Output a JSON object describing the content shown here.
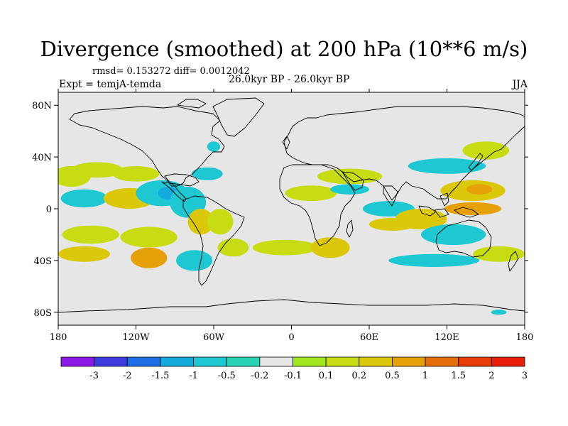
{
  "chart_data": {
    "type": "heatmap",
    "title": "Divergence (smoothed) at 200 hPa (10**6 m/s)",
    "stats_line": "rmsd= 0.153272 diff= 0.0012042",
    "expt_line": "Expt = temjA-temda",
    "period_line": "26.0kyr BP - 26.0kyr BP",
    "season": "JJA",
    "xlim": [
      -180,
      180
    ],
    "ylim": [
      -90,
      90
    ],
    "x_ticks": [
      {
        "value": -180,
        "label": "180"
      },
      {
        "value": -120,
        "label": "120W"
      },
      {
        "value": -60,
        "label": "60W"
      },
      {
        "value": 0,
        "label": "0"
      },
      {
        "value": 60,
        "label": "60E"
      },
      {
        "value": 120,
        "label": "120E"
      },
      {
        "value": 180,
        "label": "180"
      }
    ],
    "y_ticks": [
      {
        "value": 80,
        "label": "80N"
      },
      {
        "value": 40,
        "label": "40N"
      },
      {
        "value": 0,
        "label": "0"
      },
      {
        "value": -40,
        "label": "40S"
      },
      {
        "value": -80,
        "label": "80S"
      }
    ],
    "colorbar": {
      "colors": [
        "#8c1ae6",
        "#3c3cdc",
        "#1e6ee6",
        "#14aadc",
        "#1ec8d2",
        "#28d2b4",
        "#e6e6e6",
        "#a0e61e",
        "#c8dc14",
        "#dcc80a",
        "#e6a00a",
        "#e66e0a",
        "#e63c0a",
        "#e61e0a"
      ],
      "labels": [
        "-3",
        "-2",
        "-1.5",
        "-1",
        "-0.5",
        "-0.2",
        "-0.1",
        "0.1",
        "0.2",
        "0.5",
        "1",
        "1.5",
        "2",
        "3"
      ],
      "levels": [
        -3,
        -2,
        -1.5,
        -1,
        -0.5,
        -0.2,
        -0.1,
        0.1,
        0.2,
        0.5,
        1,
        1.5,
        2,
        3
      ]
    },
    "field_background": "#e6e6e6",
    "anomaly_regions": [
      {
        "lon": -170,
        "lat": 25,
        "rlon": 15,
        "rlat": 8,
        "value": 0.2
      },
      {
        "lon": -150,
        "lat": 30,
        "rlon": 20,
        "rlat": 6,
        "value": 0.2
      },
      {
        "lon": -120,
        "lat": 27,
        "rlon": 18,
        "rlat": 6,
        "value": 0.2
      },
      {
        "lon": -160,
        "lat": 8,
        "rlon": 18,
        "rlat": 7,
        "value": -0.5
      },
      {
        "lon": -125,
        "lat": 8,
        "rlon": 20,
        "rlat": 8,
        "value": 0.5
      },
      {
        "lon": -100,
        "lat": 12,
        "rlon": 20,
        "rlat": 10,
        "value": -0.5
      },
      {
        "lon": -95,
        "lat": 12,
        "rlon": 8,
        "rlat": 5,
        "value": -1
      },
      {
        "lon": -80,
        "lat": 5,
        "rlon": 14,
        "rlat": 12,
        "value": -0.5
      },
      {
        "lon": -70,
        "lat": -10,
        "rlon": 10,
        "rlat": 10,
        "value": 0.5
      },
      {
        "lon": -55,
        "lat": -10,
        "rlon": 10,
        "rlat": 10,
        "value": 0.2
      },
      {
        "lon": -65,
        "lat": 27,
        "rlon": 12,
        "rlat": 5,
        "value": -0.5
      },
      {
        "lon": -60,
        "lat": 48,
        "rlon": 5,
        "rlat": 4,
        "value": -0.5
      },
      {
        "lon": -155,
        "lat": -20,
        "rlon": 22,
        "rlat": 7,
        "value": 0.2
      },
      {
        "lon": -110,
        "lat": -22,
        "rlon": 22,
        "rlat": 8,
        "value": 0.2
      },
      {
        "lon": -160,
        "lat": -35,
        "rlon": 20,
        "rlat": 6,
        "value": 0.5
      },
      {
        "lon": -110,
        "lat": -38,
        "rlon": 14,
        "rlat": 8,
        "value": 1
      },
      {
        "lon": -75,
        "lat": -40,
        "rlon": 14,
        "rlat": 8,
        "value": -0.5
      },
      {
        "lon": -45,
        "lat": -30,
        "rlon": 12,
        "rlat": 7,
        "value": 0.2
      },
      {
        "lon": -5,
        "lat": -30,
        "rlon": 25,
        "rlat": 6,
        "value": 0.2
      },
      {
        "lon": 30,
        "lat": -30,
        "rlon": 15,
        "rlat": 8,
        "value": 0.5
      },
      {
        "lon": 15,
        "lat": 12,
        "rlon": 20,
        "rlat": 6,
        "value": 0.2
      },
      {
        "lon": 45,
        "lat": 25,
        "rlon": 25,
        "rlat": 6,
        "value": 0.2
      },
      {
        "lon": 45,
        "lat": 15,
        "rlon": 15,
        "rlat": 4,
        "value": -0.5
      },
      {
        "lon": 75,
        "lat": 0,
        "rlon": 20,
        "rlat": 6,
        "value": -0.5
      },
      {
        "lon": 78,
        "lat": -12,
        "rlon": 18,
        "rlat": 5,
        "value": 0.5
      },
      {
        "lon": 100,
        "lat": -8,
        "rlon": 20,
        "rlat": 8,
        "value": 0.5
      },
      {
        "lon": 140,
        "lat": 14,
        "rlon": 25,
        "rlat": 8,
        "value": 0.5
      },
      {
        "lon": 145,
        "lat": 15,
        "rlon": 10,
        "rlat": 4,
        "value": 1
      },
      {
        "lon": 140,
        "lat": 0,
        "rlon": 22,
        "rlat": 5,
        "value": 1
      },
      {
        "lon": 125,
        "lat": -20,
        "rlon": 25,
        "rlat": 8,
        "value": -0.5
      },
      {
        "lon": 120,
        "lat": 33,
        "rlon": 30,
        "rlat": 6,
        "value": -0.5
      },
      {
        "lon": 150,
        "lat": 45,
        "rlon": 18,
        "rlat": 7,
        "value": 0.2
      },
      {
        "lon": 110,
        "lat": -40,
        "rlon": 35,
        "rlat": 5,
        "value": -0.5
      },
      {
        "lon": 160,
        "lat": -35,
        "rlon": 20,
        "rlat": 6,
        "value": 0.2
      },
      {
        "lon": 160,
        "lat": -80,
        "rlon": 6,
        "rlat": 2,
        "value": -0.5
      }
    ]
  }
}
